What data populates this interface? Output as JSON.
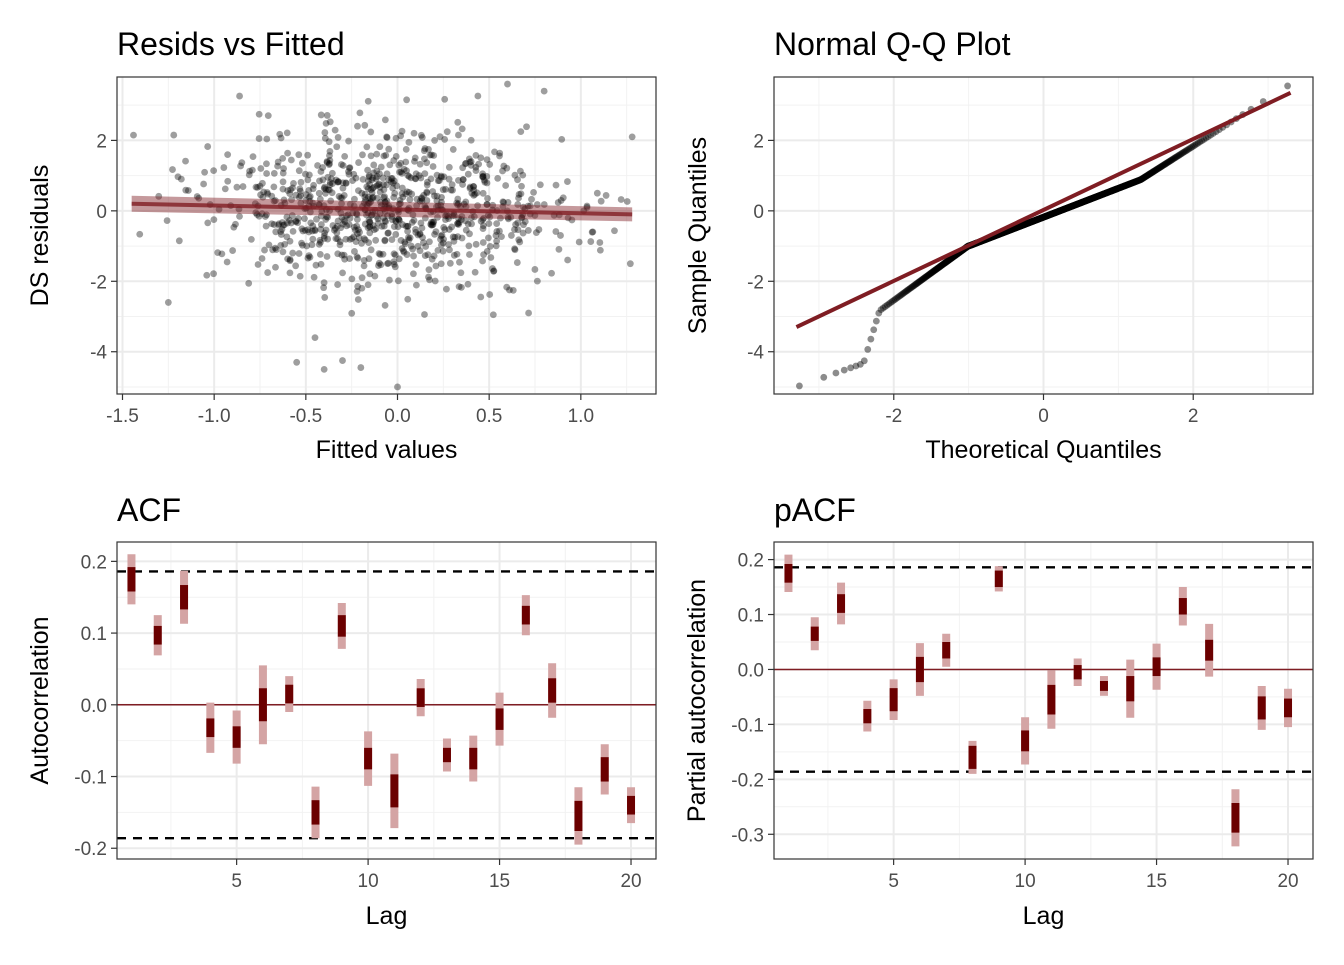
{
  "colors": {
    "accent": "#7f1d23",
    "bar_dark": "#6b0000",
    "bar_light": "#d4a4a4",
    "points": "#000000"
  },
  "chart_data": [
    {
      "id": "resid",
      "type": "scatter",
      "title": "Resids vs Fitted",
      "xlabel": "Fitted values",
      "ylabel": "DS residuals",
      "xlim": [
        -1.53,
        1.41
      ],
      "ylim": [
        -5.2,
        3.8
      ],
      "xticks": [
        -1.5,
        -1.0,
        -0.5,
        0.0,
        0.5,
        1.0
      ],
      "xtick_labels": [
        "-1.5",
        "-1.0",
        "-0.5",
        "0.0",
        "0.5",
        "1.0"
      ],
      "yticks": [
        -4,
        -2,
        0,
        2
      ],
      "ytick_labels": [
        "-4",
        "-2",
        "0",
        "2"
      ],
      "n_points": 900,
      "x_range": [
        -1.45,
        1.28
      ],
      "smooth_line": {
        "x": [
          -1.45,
          1.28
        ],
        "y": [
          0.2,
          -0.1
        ]
      },
      "outliers": [
        [
          -1.44,
          2.15
        ],
        [
          -1.25,
          -2.6
        ],
        [
          -0.55,
          -4.3
        ],
        [
          -0.45,
          -3.6
        ],
        [
          -0.4,
          -4.5
        ],
        [
          -0.3,
          -4.25
        ],
        [
          -0.2,
          -4.45
        ],
        [
          0.0,
          -5.0
        ],
        [
          0.6,
          3.6
        ],
        [
          0.8,
          3.4
        ],
        [
          1.28,
          2.1
        ],
        [
          1.27,
          -1.5
        ]
      ]
    },
    {
      "id": "qq",
      "type": "scatter",
      "title": "Normal Q-Q Plot",
      "xlabel": "Theoretical Quantiles",
      "ylabel": "Sample Quantiles",
      "xlim": [
        -3.6,
        3.6
      ],
      "ylim": [
        -5.2,
        3.8
      ],
      "xticks": [
        -2,
        0,
        2
      ],
      "xtick_labels": [
        "-2",
        "0",
        "2"
      ],
      "yticks": [
        -4,
        -2,
        0,
        2
      ],
      "ytick_labels": [
        "-4",
        "-2",
        "0",
        "2"
      ],
      "n_points": 900,
      "reference_line": {
        "x": [
          -3.3,
          3.3
        ],
        "y": [
          -3.3,
          3.35
        ]
      }
    },
    {
      "id": "acf",
      "type": "interval",
      "title": "ACF",
      "xlabel": "Lag",
      "ylabel": "Autocorrelation",
      "xlim": [
        0.45,
        20.95
      ],
      "ylim": [
        -0.215,
        0.227
      ],
      "xticks": [
        5,
        10,
        15,
        20
      ],
      "xtick_labels": [
        "5",
        "10",
        "15",
        "20"
      ],
      "yticks": [
        -0.2,
        -0.1,
        0.0,
        0.1,
        0.2
      ],
      "ytick_labels": [
        "-0.2",
        "-0.1",
        "0.0",
        "0.1",
        "0.2"
      ],
      "hlines": {
        "zero": 0.0,
        "ci": [
          0.186,
          -0.186
        ]
      },
      "lags": [
        1,
        2,
        3,
        4,
        5,
        6,
        7,
        8,
        9,
        10,
        11,
        12,
        13,
        14,
        15,
        16,
        17,
        18,
        19,
        20
      ],
      "estimates": [
        0.175,
        0.097,
        0.15,
        -0.032,
        -0.045,
        0.0,
        0.015,
        -0.15,
        0.11,
        -0.075,
        -0.12,
        0.01,
        -0.07,
        -0.075,
        -0.02,
        0.125,
        0.02,
        -0.155,
        -0.09,
        -0.14
      ],
      "half_width_inner": [
        0.017,
        0.013,
        0.017,
        0.013,
        0.015,
        0.023,
        0.013,
        0.017,
        0.015,
        0.015,
        0.023,
        0.013,
        0.01,
        0.015,
        0.015,
        0.013,
        0.017,
        0.021,
        0.017,
        0.013
      ],
      "half_width_outer": [
        0.035,
        0.028,
        0.037,
        0.035,
        0.037,
        0.055,
        0.025,
        0.036,
        0.032,
        0.038,
        0.052,
        0.026,
        0.023,
        0.032,
        0.037,
        0.028,
        0.038,
        0.04,
        0.035,
        0.025
      ]
    },
    {
      "id": "pacf",
      "type": "interval",
      "title": "pACF",
      "xlabel": "Lag",
      "ylabel": "Partial autocorrelation",
      "xlim": [
        0.45,
        20.95
      ],
      "ylim": [
        -0.345,
        0.232
      ],
      "xticks": [
        5,
        10,
        15,
        20
      ],
      "xtick_labels": [
        "5",
        "10",
        "15",
        "20"
      ],
      "yticks": [
        -0.3,
        -0.2,
        -0.1,
        0.0,
        0.1,
        0.2
      ],
      "ytick_labels": [
        "-0.3",
        "-0.2",
        "-0.1",
        "0.0",
        "0.1",
        "0.2"
      ],
      "hlines": {
        "zero": 0.0,
        "ci": [
          0.186,
          -0.186
        ]
      },
      "lags": [
        1,
        2,
        3,
        4,
        5,
        6,
        7,
        8,
        9,
        10,
        11,
        12,
        13,
        14,
        15,
        16,
        17,
        18,
        19,
        20
      ],
      "estimates": [
        0.175,
        0.065,
        0.12,
        -0.085,
        -0.055,
        0.0,
        0.035,
        -0.16,
        0.165,
        -0.13,
        -0.055,
        -0.005,
        -0.03,
        -0.035,
        0.005,
        0.115,
        0.035,
        -0.27,
        -0.07,
        -0.07
      ],
      "half_width_inner": [
        0.017,
        0.013,
        0.017,
        0.013,
        0.021,
        0.023,
        0.015,
        0.021,
        0.015,
        0.019,
        0.027,
        0.013,
        0.009,
        0.023,
        0.017,
        0.015,
        0.019,
        0.027,
        0.021,
        0.017
      ],
      "half_width_outer": [
        0.034,
        0.03,
        0.038,
        0.028,
        0.037,
        0.048,
        0.03,
        0.03,
        0.023,
        0.043,
        0.053,
        0.025,
        0.018,
        0.053,
        0.042,
        0.035,
        0.048,
        0.052,
        0.04,
        0.035
      ]
    }
  ]
}
